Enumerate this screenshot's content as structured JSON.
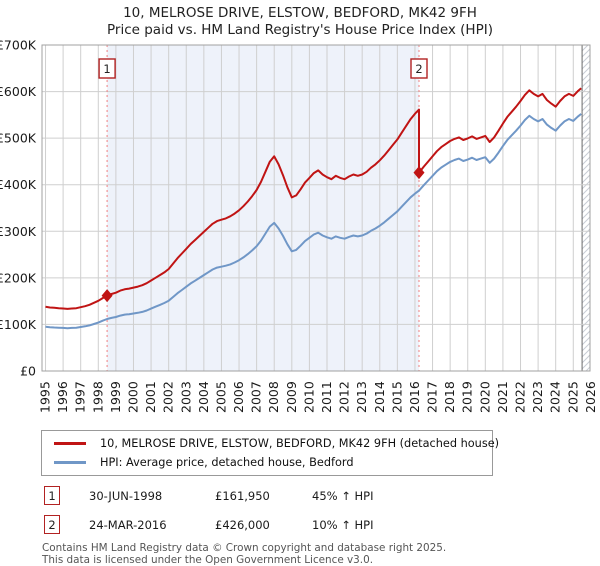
{
  "title": {
    "line1": "10, MELROSE DRIVE, ELSTOW, BEDFORD, MK42 9FH",
    "line2": "Price paid vs. HM Land Registry's House Price Index (HPI)"
  },
  "chart_data": {
    "type": "line",
    "title": "10, MELROSE DRIVE, ELSTOW, BEDFORD, MK42 9FH — Price paid vs. HM Land Registry's House Price Index (HPI)",
    "xlabel": "",
    "ylabel": "",
    "unit": "GBP",
    "xlim": [
      1994.8,
      2025.95
    ],
    "ylim": [
      0,
      700000
    ],
    "grid": true,
    "x_ticks": [
      1995,
      1996,
      1997,
      1998,
      1999,
      2000,
      2001,
      2002,
      2003,
      2004,
      2005,
      2006,
      2007,
      2008,
      2009,
      2010,
      2011,
      2012,
      2013,
      2014,
      2015,
      2016,
      2017,
      2018,
      2019,
      2020,
      2021,
      2022,
      2023,
      2024,
      2025,
      2026
    ],
    "y_ticks": [
      {
        "v": 0,
        "label": "£0"
      },
      {
        "v": 100000,
        "label": "£100K"
      },
      {
        "v": 200000,
        "label": "£200K"
      },
      {
        "v": 300000,
        "label": "£300K"
      },
      {
        "v": 400000,
        "label": "£400K"
      },
      {
        "v": 500000,
        "label": "£500K"
      },
      {
        "v": 600000,
        "label": "£600K"
      },
      {
        "v": 700000,
        "label": "£700K"
      }
    ],
    "shaded_span": [
      1998.5,
      2016.23
    ],
    "hatch_span": [
      2025.5,
      2025.95
    ],
    "colors": {
      "property": "#c01414",
      "hpi": "#7097c7",
      "event_line": "#f08080",
      "shade": "#eef2fa",
      "grid": "#cfcfcf",
      "border": "#a0a0a0",
      "hatch": "#c8ccd4",
      "hatch_edge": "#6a6a6a",
      "marker_box_border": "#b22222"
    },
    "markers": [
      {
        "label": "1",
        "date": "30-JUN-1998",
        "x": 1998.5,
        "price": 161950
      },
      {
        "label": "2",
        "date": "24-MAR-2016",
        "x": 2016.23,
        "price": 426000
      }
    ],
    "series": [
      {
        "name": "10, MELROSE DRIVE, ELSTOW, BEDFORD, MK42 9FH (detached house)",
        "color": "#c01414",
        "points": [
          [
            1995,
            137800
          ],
          [
            1995.25,
            136300
          ],
          [
            1995.5,
            135600
          ],
          [
            1995.75,
            134900
          ],
          [
            1996,
            134100
          ],
          [
            1996.25,
            133400
          ],
          [
            1996.5,
            134100
          ],
          [
            1996.75,
            134900
          ],
          [
            1997,
            137000
          ],
          [
            1997.25,
            139200
          ],
          [
            1997.5,
            142100
          ],
          [
            1997.75,
            146500
          ],
          [
            1998,
            150800
          ],
          [
            1998.25,
            156600
          ],
          [
            1998.5,
            161950
          ],
          [
            1998.75,
            165300
          ],
          [
            1999,
            168200
          ],
          [
            1999.25,
            172600
          ],
          [
            1999.5,
            175500
          ],
          [
            1999.75,
            176900
          ],
          [
            2000,
            179100
          ],
          [
            2000.25,
            181300
          ],
          [
            2000.5,
            184200
          ],
          [
            2000.75,
            188500
          ],
          [
            2001,
            194300
          ],
          [
            2001.25,
            200100
          ],
          [
            2001.5,
            205900
          ],
          [
            2001.75,
            211700
          ],
          [
            2002,
            219000
          ],
          [
            2002.25,
            230600
          ],
          [
            2002.5,
            242200
          ],
          [
            2002.75,
            252300
          ],
          [
            2003,
            262500
          ],
          [
            2003.25,
            272600
          ],
          [
            2003.5,
            281300
          ],
          [
            2003.75,
            290000
          ],
          [
            2004,
            298700
          ],
          [
            2004.25,
            307400
          ],
          [
            2004.5,
            316100
          ],
          [
            2004.75,
            321900
          ],
          [
            2005,
            324800
          ],
          [
            2005.25,
            327700
          ],
          [
            2005.5,
            332100
          ],
          [
            2005.75,
            337900
          ],
          [
            2006,
            345100
          ],
          [
            2006.25,
            353800
          ],
          [
            2006.5,
            364000
          ],
          [
            2006.75,
            375600
          ],
          [
            2007,
            388600
          ],
          [
            2007.25,
            406000
          ],
          [
            2007.5,
            427800
          ],
          [
            2007.75,
            449500
          ],
          [
            2008,
            461100
          ],
          [
            2008.25,
            443700
          ],
          [
            2008.5,
            420500
          ],
          [
            2008.75,
            394400
          ],
          [
            2009,
            372700
          ],
          [
            2009.25,
            377000
          ],
          [
            2009.5,
            390100
          ],
          [
            2009.75,
            404600
          ],
          [
            2010,
            414700
          ],
          [
            2010.25,
            424900
          ],
          [
            2010.5,
            430700
          ],
          [
            2010.75,
            422000
          ],
          [
            2011,
            416200
          ],
          [
            2011.25,
            411800
          ],
          [
            2011.5,
            419100
          ],
          [
            2011.75,
            414700
          ],
          [
            2012,
            411800
          ],
          [
            2012.25,
            417600
          ],
          [
            2012.5,
            422000
          ],
          [
            2012.75,
            419100
          ],
          [
            2013,
            422000
          ],
          [
            2013.25,
            427800
          ],
          [
            2013.5,
            436500
          ],
          [
            2013.75,
            443700
          ],
          [
            2014,
            452400
          ],
          [
            2014.25,
            462600
          ],
          [
            2014.5,
            474200
          ],
          [
            2014.75,
            485800
          ],
          [
            2015,
            497400
          ],
          [
            2015.25,
            511900
          ],
          [
            2015.5,
            526400
          ],
          [
            2015.75,
            540900
          ],
          [
            2016,
            552500
          ],
          [
            2016.23,
            561200
          ],
          [
            2016.23,
            426000
          ],
          [
            2016.5,
            438900
          ],
          [
            2016.75,
            449900
          ],
          [
            2017,
            460900
          ],
          [
            2017.25,
            471900
          ],
          [
            2017.5,
            480700
          ],
          [
            2017.75,
            487300
          ],
          [
            2018,
            493900
          ],
          [
            2018.25,
            498300
          ],
          [
            2018.5,
            501600
          ],
          [
            2018.75,
            496100
          ],
          [
            2019,
            499400
          ],
          [
            2019.25,
            503800
          ],
          [
            2019.5,
            498300
          ],
          [
            2019.75,
            501600
          ],
          [
            2020,
            504900
          ],
          [
            2020.25,
            491700
          ],
          [
            2020.5,
            501600
          ],
          [
            2020.75,
            515900
          ],
          [
            2021,
            531300
          ],
          [
            2021.25,
            545600
          ],
          [
            2021.5,
            556600
          ],
          [
            2021.75,
            567600
          ],
          [
            2022,
            579700
          ],
          [
            2022.25,
            592900
          ],
          [
            2022.5,
            602800
          ],
          [
            2022.75,
            595100
          ],
          [
            2023,
            589600
          ],
          [
            2023.25,
            595100
          ],
          [
            2023.5,
            581900
          ],
          [
            2023.75,
            574200
          ],
          [
            2024,
            567600
          ],
          [
            2024.25,
            579700
          ],
          [
            2024.5,
            589600
          ],
          [
            2024.75,
            595100
          ],
          [
            2025,
            590700
          ],
          [
            2025.25,
            600600
          ],
          [
            2025.45,
            607200
          ]
        ]
      },
      {
        "name": "HPI: Average price, detached house, Bedford",
        "color": "#7097c7",
        "points": [
          [
            1995,
            95000
          ],
          [
            1995.25,
            94000
          ],
          [
            1995.5,
            93500
          ],
          [
            1995.75,
            93000
          ],
          [
            1996,
            92500
          ],
          [
            1996.25,
            92000
          ],
          [
            1996.5,
            92500
          ],
          [
            1996.75,
            93000
          ],
          [
            1997,
            94500
          ],
          [
            1997.25,
            96000
          ],
          [
            1997.5,
            98000
          ],
          [
            1997.75,
            101000
          ],
          [
            1998,
            104000
          ],
          [
            1998.25,
            108000
          ],
          [
            1998.5,
            111700
          ],
          [
            1998.75,
            114000
          ],
          [
            1999,
            116000
          ],
          [
            1999.25,
            119000
          ],
          [
            1999.5,
            121000
          ],
          [
            1999.75,
            122000
          ],
          [
            2000,
            123500
          ],
          [
            2000.25,
            125000
          ],
          [
            2000.5,
            127000
          ],
          [
            2000.75,
            130000
          ],
          [
            2001,
            134000
          ],
          [
            2001.25,
            138000
          ],
          [
            2001.5,
            142000
          ],
          [
            2001.75,
            146000
          ],
          [
            2002,
            151000
          ],
          [
            2002.25,
            159000
          ],
          [
            2002.5,
            167000
          ],
          [
            2002.75,
            174000
          ],
          [
            2003,
            181000
          ],
          [
            2003.25,
            188000
          ],
          [
            2003.5,
            194000
          ],
          [
            2003.75,
            200000
          ],
          [
            2004,
            206000
          ],
          [
            2004.25,
            212000
          ],
          [
            2004.5,
            218000
          ],
          [
            2004.75,
            222000
          ],
          [
            2005,
            224000
          ],
          [
            2005.25,
            226000
          ],
          [
            2005.5,
            229000
          ],
          [
            2005.75,
            233000
          ],
          [
            2006,
            238000
          ],
          [
            2006.25,
            244000
          ],
          [
            2006.5,
            251000
          ],
          [
            2006.75,
            259000
          ],
          [
            2007,
            268000
          ],
          [
            2007.25,
            280000
          ],
          [
            2007.5,
            295000
          ],
          [
            2007.75,
            310000
          ],
          [
            2008,
            318000
          ],
          [
            2008.25,
            306000
          ],
          [
            2008.5,
            290000
          ],
          [
            2008.75,
            272000
          ],
          [
            2009,
            257000
          ],
          [
            2009.25,
            260000
          ],
          [
            2009.5,
            269000
          ],
          [
            2009.75,
            279000
          ],
          [
            2010,
            286000
          ],
          [
            2010.25,
            293000
          ],
          [
            2010.5,
            297000
          ],
          [
            2010.75,
            291000
          ],
          [
            2011,
            287000
          ],
          [
            2011.25,
            284000
          ],
          [
            2011.5,
            289000
          ],
          [
            2011.75,
            286000
          ],
          [
            2012,
            284000
          ],
          [
            2012.25,
            288000
          ],
          [
            2012.5,
            291000
          ],
          [
            2012.75,
            289000
          ],
          [
            2013,
            291000
          ],
          [
            2013.25,
            295000
          ],
          [
            2013.5,
            301000
          ],
          [
            2013.75,
            306000
          ],
          [
            2014,
            312000
          ],
          [
            2014.25,
            319000
          ],
          [
            2014.5,
            327000
          ],
          [
            2014.75,
            335000
          ],
          [
            2015,
            343000
          ],
          [
            2015.25,
            353000
          ],
          [
            2015.5,
            363000
          ],
          [
            2015.75,
            373000
          ],
          [
            2016,
            381000
          ],
          [
            2016.23,
            387300
          ],
          [
            2016.5,
            399000
          ],
          [
            2016.75,
            409000
          ],
          [
            2017,
            419000
          ],
          [
            2017.25,
            429000
          ],
          [
            2017.5,
            437000
          ],
          [
            2017.75,
            443000
          ],
          [
            2018,
            449000
          ],
          [
            2018.25,
            453000
          ],
          [
            2018.5,
            456000
          ],
          [
            2018.75,
            451000
          ],
          [
            2019,
            454000
          ],
          [
            2019.25,
            458000
          ],
          [
            2019.5,
            453000
          ],
          [
            2019.75,
            456000
          ],
          [
            2020,
            459000
          ],
          [
            2020.25,
            447000
          ],
          [
            2020.5,
            456000
          ],
          [
            2020.75,
            469000
          ],
          [
            2021,
            483000
          ],
          [
            2021.25,
            496000
          ],
          [
            2021.5,
            506000
          ],
          [
            2021.75,
            516000
          ],
          [
            2022,
            527000
          ],
          [
            2022.25,
            539000
          ],
          [
            2022.5,
            548000
          ],
          [
            2022.75,
            541000
          ],
          [
            2023,
            536000
          ],
          [
            2023.25,
            541000
          ],
          [
            2023.5,
            529000
          ],
          [
            2023.75,
            522000
          ],
          [
            2024,
            516000
          ],
          [
            2024.25,
            527000
          ],
          [
            2024.5,
            536000
          ],
          [
            2024.75,
            541000
          ],
          [
            2025,
            537000
          ],
          [
            2025.25,
            546000
          ],
          [
            2025.45,
            552000
          ]
        ]
      }
    ],
    "legend_position": "bottom"
  },
  "legend": {
    "items": [
      {
        "label": "10, MELROSE DRIVE, ELSTOW, BEDFORD, MK42 9FH (detached house)",
        "color": "#c01414"
      },
      {
        "label": "HPI: Average price, detached house, Bedford",
        "color": "#7097c7"
      }
    ]
  },
  "annotations": [
    {
      "num": "1",
      "date": "30-JUN-1998",
      "price": "£161,950",
      "hpi": "45% ↑ HPI"
    },
    {
      "num": "2",
      "date": "24-MAR-2016",
      "price": "£426,000",
      "hpi": "10% ↑ HPI"
    }
  ],
  "footer": {
    "line1": "Contains HM Land Registry data © Crown copyright and database right 2025.",
    "line2": "This data is licensed under the Open Government Licence v3.0."
  }
}
